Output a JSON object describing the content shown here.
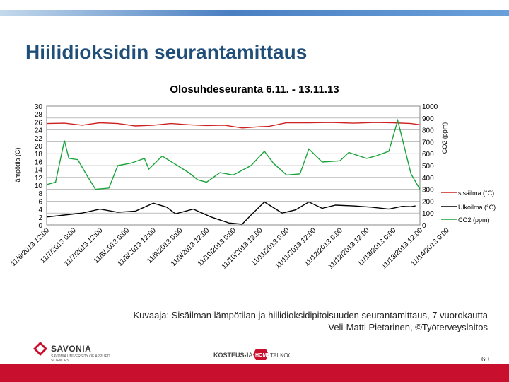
{
  "slide": {
    "title": "Hiilidioksidin seurantamittaus",
    "caption_line1": "Kuvaaja: Sisäilman lämpötilan ja hiilidioksidipitoisuuden seurantamittaus, 7 vuorokautta",
    "caption_line2": "Veli-Matti Pietarinen, ©Työterveyslaitos",
    "page_number": "60",
    "logo_savonia_name": "SAVONIA",
    "logo_savonia_sub": "SAVONIA UNIVERSITY OF APPLIED SCIENCES",
    "logo_kosteus_text": "KOSTEUS- JA HOME TALKOOT"
  },
  "colors": {
    "accent_blue": "#1f4e79",
    "bottom_bar": "#c8102e",
    "sisailma": "#cc2222",
    "ulkoilma": "#000000",
    "co2": "#19a33a"
  },
  "chart_data": {
    "type": "line",
    "title": "Olosuhdeseuranta 6.11. - 13.11.13",
    "ylabel_left": "lämpötila (C)",
    "ylabel_right": "CO2 (ppm)",
    "ylim_left": [
      0,
      30
    ],
    "ylim_right": [
      0,
      1000
    ],
    "yticks_left": [
      "30",
      "28",
      "26",
      "24",
      "22",
      "20",
      "18",
      "16",
      "14",
      "12",
      "10",
      "8",
      "6",
      "4",
      "2",
      "0"
    ],
    "yticks_right": [
      "1000",
      "900",
      "800",
      "700",
      "600",
      "500",
      "400",
      "300",
      "200",
      "100",
      "0"
    ],
    "x_tick_labels": [
      "11/6/2013 12:00",
      "11/7/2013 0:00",
      "11/7/2013 12:00",
      "11/8/2013 0:00",
      "11/8/2013 12:00",
      "11/9/2013 0:00",
      "11/9/2013 12:00",
      "11/10/2013 0:00",
      "11/10/2013 12:00",
      "11/11/2013 0:00",
      "11/11/2013 12:00",
      "11/12/2013 0:00",
      "11/12/2013 12:00",
      "11/13/2013 0:00",
      "11/13/2013 12:00",
      "11/14/2013 0:00"
    ],
    "x_start_hours": 12,
    "x_end_hours": 180,
    "grid": true,
    "legend_position": "right",
    "series": [
      {
        "name": "sisäilma (°C)",
        "axis": "left",
        "color": "#cc2222",
        "x": [
          12,
          20,
          28,
          36,
          44,
          52,
          60,
          68,
          76,
          84,
          92,
          100,
          108,
          112,
          120,
          130,
          140,
          150,
          160,
          168,
          176,
          180
        ],
        "y": [
          25.6,
          25.7,
          25.2,
          25.8,
          25.6,
          25.0,
          25.2,
          25.6,
          25.3,
          25.1,
          25.2,
          24.5,
          24.8,
          24.9,
          25.8,
          25.8,
          25.9,
          25.7,
          25.9,
          25.8,
          25.6,
          25.3
        ]
      },
      {
        "name": "Ulkoilma (°C)",
        "axis": "left",
        "color": "#000000",
        "x": [
          12,
          20,
          28,
          36,
          44,
          52,
          60,
          66,
          70,
          78,
          86,
          94,
          100,
          104,
          110,
          118,
          124,
          130,
          136,
          142,
          150,
          158,
          166,
          172,
          176,
          178
        ],
        "y": [
          2.0,
          2.5,
          3.0,
          4.0,
          3.2,
          3.5,
          5.5,
          4.5,
          2.8,
          4.0,
          2.0,
          0.5,
          0.2,
          2.5,
          5.8,
          3.0,
          3.8,
          5.8,
          4.2,
          5.0,
          4.8,
          4.5,
          4.0,
          4.7,
          4.6,
          4.8
        ]
      },
      {
        "name": "CO2 (ppm)",
        "axis": "right",
        "color": "#19a33a",
        "x": [
          12,
          16,
          20,
          22,
          26,
          30,
          34,
          40,
          44,
          50,
          56,
          58,
          64,
          70,
          76,
          80,
          84,
          90,
          96,
          104,
          110,
          114,
          120,
          126,
          130,
          136,
          144,
          148,
          156,
          160,
          166,
          170,
          176,
          180
        ],
        "y": [
          340,
          360,
          710,
          560,
          550,
          420,
          300,
          310,
          500,
          520,
          560,
          470,
          580,
          510,
          440,
          380,
          360,
          440,
          420,
          500,
          620,
          520,
          420,
          430,
          640,
          530,
          540,
          610,
          560,
          580,
          620,
          880,
          430,
          300
        ]
      }
    ]
  }
}
